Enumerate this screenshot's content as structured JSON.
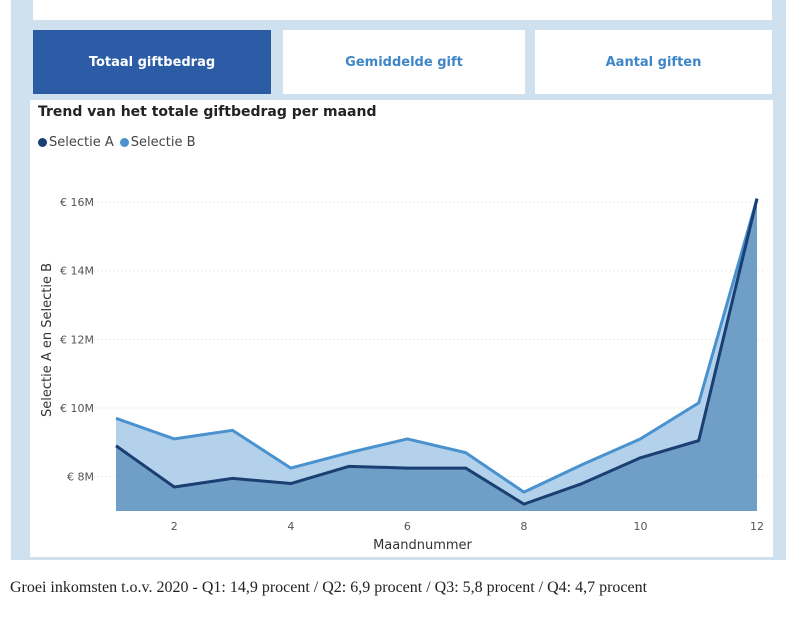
{
  "tabs": [
    {
      "label": "Totaal giftbedrag",
      "active": true
    },
    {
      "label": "Gemiddelde gift",
      "active": false
    },
    {
      "label": "Aantal giften",
      "active": false
    }
  ],
  "colors": {
    "frame": "#cfe0ef",
    "tab_active_bg": "#2d5ca6",
    "tab_inactive_text": "#3f86c7",
    "series_a": "#1b3f73",
    "series_b": "#4a92cf",
    "area_a": "#6f9fc6",
    "area_b": "#b3d1ea",
    "grid": "#d7d7d7"
  },
  "chart_data": {
    "type": "area",
    "title": "Trend van het totale giftbedrag per maand",
    "xlabel": "Maandnummer",
    "ylabel": "Selectie A en Selectie B",
    "x": [
      1,
      2,
      3,
      4,
      5,
      6,
      7,
      8,
      9,
      10,
      11,
      12
    ],
    "x_ticks": [
      2,
      4,
      6,
      8,
      10,
      12
    ],
    "y_ticks": [
      8,
      10,
      12,
      14,
      16
    ],
    "y_tick_labels": [
      "€ 8M",
      "€ 10M",
      "€ 12M",
      "€ 14M",
      "€ 16M"
    ],
    "ylim": [
      7,
      16.7
    ],
    "y_unit": "million EUR",
    "grid": true,
    "legend_position": "top-left",
    "series": [
      {
        "name": "Selectie A",
        "values": [
          8.9,
          7.7,
          7.95,
          7.8,
          8.3,
          8.25,
          8.25,
          7.2,
          7.8,
          8.55,
          9.05,
          16.1
        ]
      },
      {
        "name": "Selectie B",
        "values": [
          9.7,
          9.1,
          9.35,
          8.25,
          8.7,
          9.1,
          8.7,
          7.55,
          8.35,
          9.1,
          10.15,
          16.1
        ]
      }
    ]
  },
  "caption": "Groei inkomsten t.o.v. 2020 - Q1: 14,9 procent / Q2: 6,9 procent / Q3: 5,8 procent  / Q4: 4,7 procent"
}
